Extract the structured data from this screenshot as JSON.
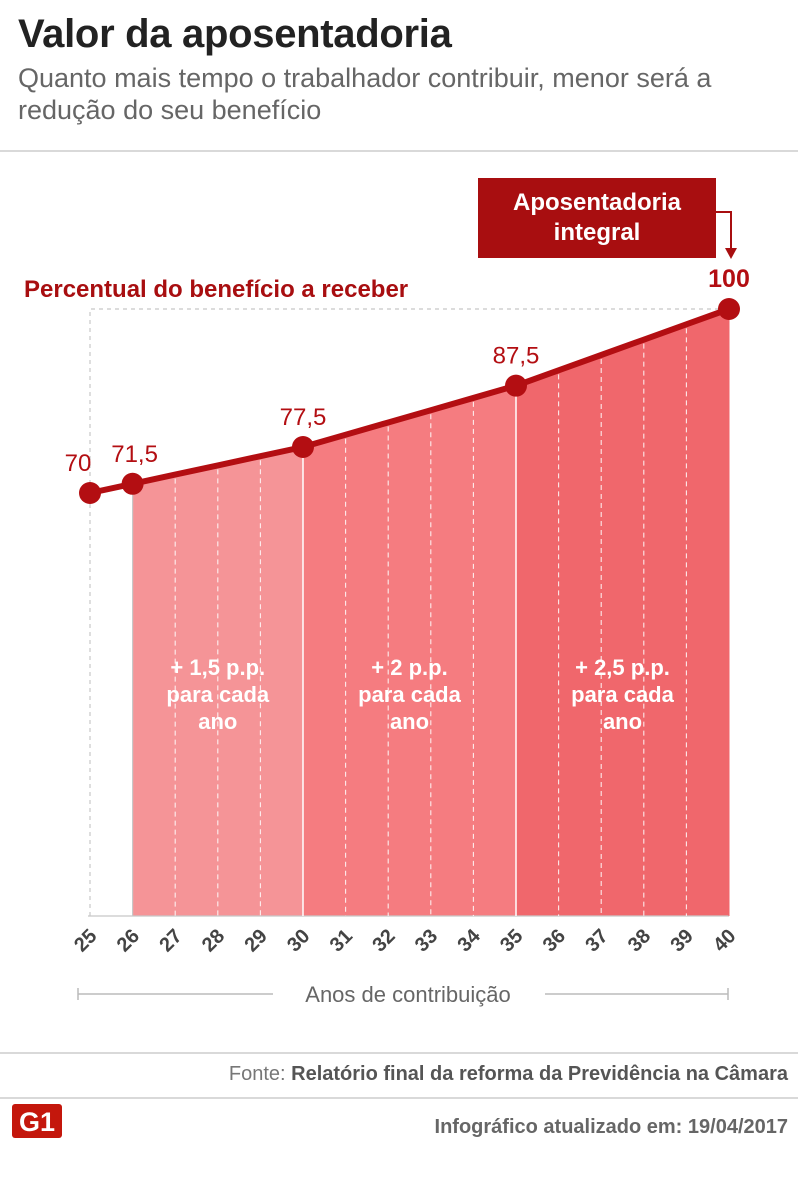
{
  "header": {
    "title": "Valor da aposentadoria",
    "subtitle": "Quanto mais tempo o trabalhador contribuir, menor será a redução do seu benefício"
  },
  "chart_data": {
    "type": "area",
    "title": "Percentual do benefício a receber",
    "xlabel": "Anos de contribuição",
    "ylabel": "",
    "x": [
      25,
      26,
      27,
      28,
      29,
      30,
      31,
      32,
      33,
      34,
      35,
      36,
      37,
      38,
      39,
      40
    ],
    "values": [
      70,
      71.5,
      73,
      74.5,
      76,
      77.5,
      79.5,
      81.5,
      83.5,
      85.5,
      87.5,
      90,
      92.5,
      95,
      97.5,
      100
    ],
    "point_labels": [
      {
        "x": 25,
        "label": "70"
      },
      {
        "x": 26,
        "label": "71,5"
      },
      {
        "x": 30,
        "label": "77,5"
      },
      {
        "x": 35,
        "label": "87,5"
      },
      {
        "x": 40,
        "label": "100"
      }
    ],
    "bands": [
      {
        "from": 26,
        "to": 30,
        "label_lines": [
          "+ 1,5 p.p.",
          "para cada",
          "ano"
        ],
        "color": "#f59497"
      },
      {
        "from": 30,
        "to": 35,
        "label_lines": [
          "+ 2 p.p.",
          "para cada",
          "ano"
        ],
        "color": "#f57c80"
      },
      {
        "from": 35,
        "to": 40,
        "label_lines": [
          "+ 2,5 p.p.",
          "para cada",
          "ano"
        ],
        "color": "#f0676c"
      }
    ],
    "callout_lines": [
      "Aposentadoria",
      "integral"
    ],
    "colors": {
      "line": "#b30e12",
      "callout_bg": "#a80e10",
      "axis": "#bbbbbb",
      "text": "#444444"
    }
  },
  "footer": {
    "source_label": "Fonte:",
    "source_text": "Relatório final da reforma da Previdência na Câmara",
    "logo_text": "G1",
    "updated": "Infográfico atualizado em: 19/04/2017"
  }
}
